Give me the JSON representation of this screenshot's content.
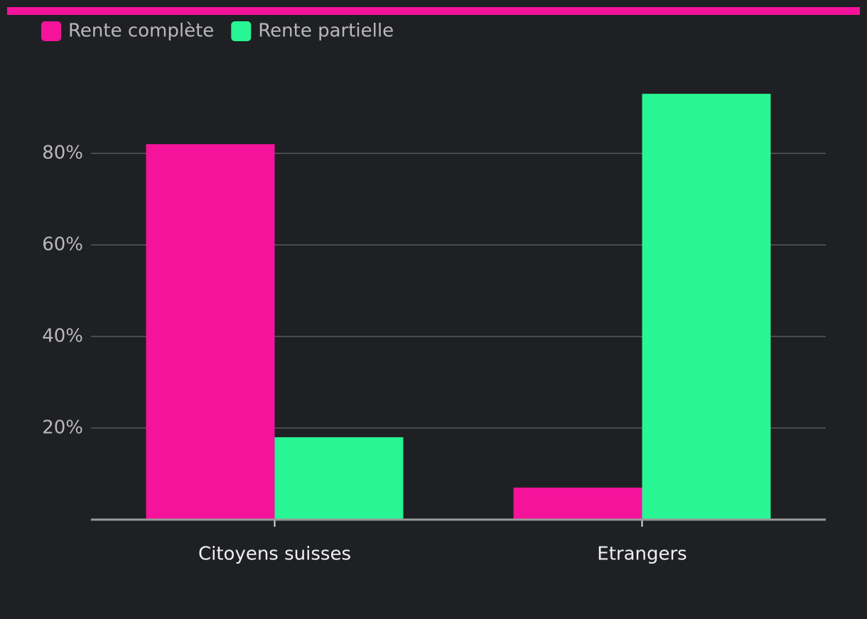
{
  "chart_data": {
    "type": "bar",
    "categories": [
      "Citoyens suisses",
      "Etrangers"
    ],
    "series": [
      {
        "name": "Rente complète",
        "color": "#f5139b",
        "values": [
          82,
          7
        ]
      },
      {
        "name": "Rente partielle",
        "color": "#28f593",
        "values": [
          18,
          93
        ]
      }
    ],
    "ylim": [
      0,
      100
    ],
    "yticks": [
      {
        "value": 20,
        "label": "20%"
      },
      {
        "value": 40,
        "label": "40%"
      },
      {
        "value": 60,
        "label": "60%"
      },
      {
        "value": 80,
        "label": "80%"
      }
    ],
    "grid": true,
    "legend": "top-left"
  }
}
